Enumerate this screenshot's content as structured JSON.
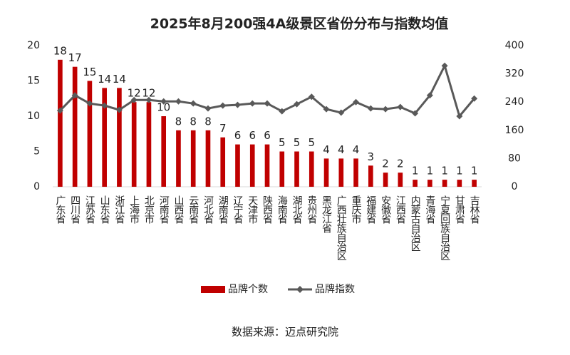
{
  "chart_data": {
    "type": "bar",
    "title": "2025年8月200强4A级景区省份分布与指数均值",
    "categories": [
      "广东省",
      "四川省",
      "江苏省",
      "山东省",
      "浙江省",
      "上海市",
      "北京市",
      "河南省",
      "山西省",
      "云南省",
      "河北省",
      "湖南省",
      "辽宁省",
      "天津市",
      "陕西省",
      "海南省",
      "湖北省",
      "贵州省",
      "黑龙江省",
      "广西壮族自治区",
      "重庆市",
      "福建省",
      "安徽省",
      "江西省",
      "内蒙古自治区",
      "青海省",
      "宁夏回族自治区",
      "甘肃省",
      "吉林省"
    ],
    "series": [
      {
        "name": "品牌个数",
        "type": "bar",
        "color": "#c00000",
        "values": [
          18,
          17,
          15,
          14,
          14,
          12,
          12,
          10,
          8,
          8,
          8,
          7,
          6,
          6,
          6,
          5,
          5,
          5,
          4,
          4,
          4,
          3,
          2,
          2,
          1,
          1,
          1,
          1,
          1
        ]
      },
      {
        "name": "品牌指数",
        "type": "line",
        "axis": "y2",
        "color": "#595959",
        "values": [
          216,
          259,
          236,
          230,
          218,
          246,
          246,
          242,
          242,
          236,
          222,
          230,
          232,
          236,
          236,
          214,
          234,
          255,
          220,
          210,
          240,
          222,
          220,
          226,
          208,
          259,
          343,
          200,
          250
        ]
      }
    ],
    "ylim": [
      0,
      20
    ],
    "yticks": [
      0,
      5,
      10,
      15,
      20
    ],
    "y2lim": [
      0,
      400
    ],
    "y2ticks": [
      0,
      80,
      160,
      240,
      320,
      400
    ],
    "grid": false,
    "legend": "bottom",
    "source": "数据来源：迈点研究院"
  }
}
